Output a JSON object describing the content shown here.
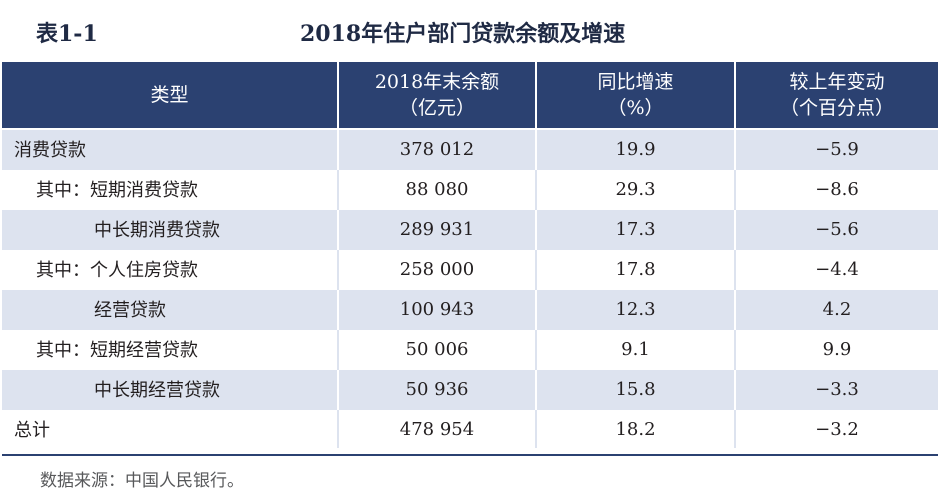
{
  "table": {
    "id": "表1-1",
    "title": "2018年住户部门贷款余额及增速",
    "headers": [
      {
        "line1": "类型",
        "line2": ""
      },
      {
        "line1": "2018年末余额",
        "line2": "（亿元）"
      },
      {
        "line1": "同比增速",
        "line2": "（%）"
      },
      {
        "line1": "较上年变动",
        "line2": "（个百分点）"
      }
    ],
    "rows": [
      {
        "label": "消费贷款",
        "balance": "378 012",
        "growth": "19.9",
        "change": "−5.9"
      },
      {
        "label": "其中：短期消费贷款",
        "balance": "88 080",
        "growth": "29.3",
        "change": "−8.6"
      },
      {
        "label": "中长期消费贷款",
        "balance": "289 931",
        "growth": "17.3",
        "change": "−5.6"
      },
      {
        "label": "其中：个人住房贷款",
        "balance": "258 000",
        "growth": "17.8",
        "change": "−4.4"
      },
      {
        "label": "经营贷款",
        "balance": "100 943",
        "growth": "12.3",
        "change": "4.2"
      },
      {
        "label": "其中：短期经营贷款",
        "balance": "50 006",
        "growth": "9.1",
        "change": "9.9"
      },
      {
        "label": "中长期经营贷款",
        "balance": "50 936",
        "growth": "15.8",
        "change": "−3.3"
      },
      {
        "label": "总计",
        "balance": "478 954",
        "growth": "18.2",
        "change": "−3.2"
      }
    ],
    "source": "数据来源：中国人民银行。"
  }
}
